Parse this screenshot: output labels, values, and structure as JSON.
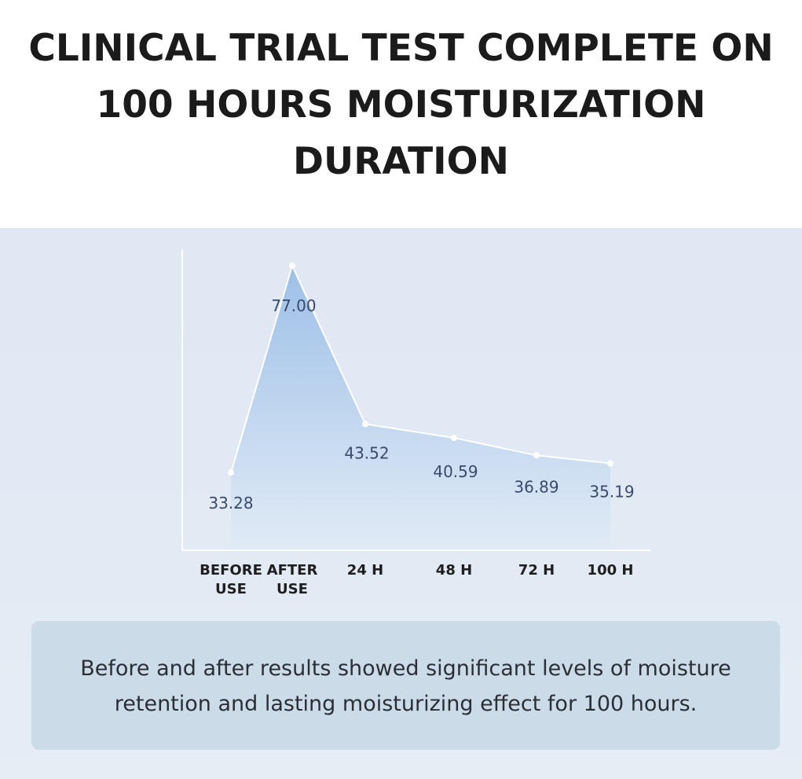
{
  "headline": {
    "line1": "CLINICAL TRIAL TEST COMPLETE ON",
    "line2": "100 HOURS MOISTURIZATION",
    "line3": "DURATION"
  },
  "chart_data": {
    "type": "area",
    "title": "",
    "xlabel": "",
    "ylabel": "",
    "categories": [
      "BEFORE\nUSE",
      "AFTER\nUSE",
      "24 H",
      "48 H",
      "72 H",
      "100 H"
    ],
    "values": [
      33.28,
      77.0,
      43.52,
      40.59,
      36.89,
      35.19
    ],
    "data_labels": [
      "33.28",
      "77.00",
      "43.52",
      "40.59",
      "36.89",
      "35.19"
    ],
    "grid": false,
    "legend": "none",
    "colors": {
      "line": "#ffffff",
      "fill_top": "#9ec0e8",
      "fill_bottom": "#e1ebf6",
      "label": "#3a4a6a",
      "axis": "#ffffff"
    }
  },
  "note": {
    "text": "Before and after results showed significant levels of moisture\nretention and  lasting moisturizing effect for 100 hours."
  }
}
